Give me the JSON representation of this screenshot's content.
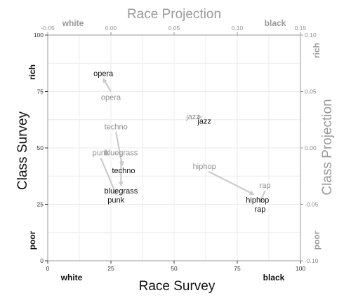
{
  "chart_data": {
    "type": "scatter",
    "title": "Race Projection",
    "xlabel": "Race Survey",
    "ylabel": "Class Survey",
    "x2label": "Race Projection",
    "y2label": "Class Projection",
    "xlim": [
      0,
      100
    ],
    "ylim": [
      0,
      100
    ],
    "x2lim": [
      -0.05,
      0.15
    ],
    "y2lim": [
      -0.1,
      0.1
    ],
    "xticks": [
      "0",
      "25",
      "50",
      "75",
      "100"
    ],
    "yticks": [
      "0",
      "25",
      "50",
      "75",
      "100"
    ],
    "x2ticks": [
      "-0.05",
      "0.00",
      "0.05",
      "0.10",
      "0.15"
    ],
    "y2ticks": [
      "-0.10",
      "-0.05",
      "0.00",
      "0.05",
      "0.10"
    ],
    "x_end_labels": {
      "low": "white",
      "high": "black"
    },
    "y_end_labels": {
      "low": "poor",
      "high": "rich"
    },
    "x2_end_labels": {
      "low": "white",
      "high": "black"
    },
    "y2_end_labels": {
      "low": "poor",
      "high": "rich"
    },
    "grid": true,
    "series": [
      {
        "values": [
          {
            "label": "opera",
            "x": 22,
            "y": 83
          },
          {
            "label": "jazz",
            "x": 62,
            "y": 62
          },
          {
            "label": "techno",
            "x": 30,
            "y": 40
          },
          {
            "label": "bluegrass",
            "x": 29,
            "y": 31
          },
          {
            "label": "punk",
            "x": 27,
            "y": 27
          },
          {
            "label": "hiphop",
            "x": 83,
            "y": 27
          },
          {
            "label": "rap",
            "x": 84,
            "y": 23
          }
        ]
      },
      {
        "values": [
          {
            "label": "opera",
            "x": 0.0,
            "y": 0.045
          },
          {
            "label": "jazz",
            "x": 0.065,
            "y": 0.028
          },
          {
            "label": "techno",
            "x": 0.004,
            "y": 0.019
          },
          {
            "label": "bluegrass",
            "x": 0.008,
            "y": -0.004
          },
          {
            "label": "punk",
            "x": -0.008,
            "y": -0.004
          },
          {
            "label": "hiphop",
            "x": 0.074,
            "y": -0.016
          },
          {
            "label": "rap",
            "x": 0.122,
            "y": -0.033
          }
        ]
      }
    ],
    "colors": {
      "survey": "#111111",
      "projection": "#999999",
      "arrow": "#cccccc",
      "grid": "#ebebeb"
    }
  }
}
